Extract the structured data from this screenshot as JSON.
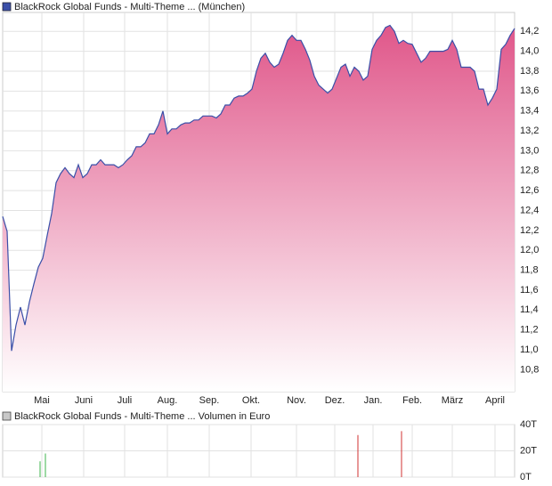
{
  "chart_data": [
    {
      "type": "area",
      "title": "BlackRock Global Funds - Multi-Theme ... (München)",
      "color": "#3a4fa8",
      "fill_color": "#e0578a",
      "xlim": [
        0,
        115
      ],
      "xticks": [
        {
          "value": 8.8,
          "label": "Mai"
        },
        {
          "value": 18.2,
          "label": "Juni"
        },
        {
          "value": 27.4,
          "label": "Juli"
        },
        {
          "value": 37,
          "label": "Aug."
        },
        {
          "value": 46.4,
          "label": "Sep."
        },
        {
          "value": 55.8,
          "label": "Okt."
        },
        {
          "value": 66,
          "label": "Nov."
        },
        {
          "value": 74.6,
          "label": "Dez."
        },
        {
          "value": 83.2,
          "label": "Jan."
        },
        {
          "value": 92,
          "label": "Feb."
        },
        {
          "value": 101,
          "label": "März"
        },
        {
          "value": 110.6,
          "label": "April"
        }
      ],
      "ylim": [
        10.58,
        14.39
      ],
      "yticks": [
        {
          "value": 10.8,
          "label": "10,8"
        },
        {
          "value": 11.0,
          "label": "11,0"
        },
        {
          "value": 11.2,
          "label": "11,2"
        },
        {
          "value": 11.4,
          "label": "11,4"
        },
        {
          "value": 11.6,
          "label": "11,6"
        },
        {
          "value": 11.8,
          "label": "11,8"
        },
        {
          "value": 12.0,
          "label": "12,0"
        },
        {
          "value": 12.2,
          "label": "12,2"
        },
        {
          "value": 12.4,
          "label": "12,4"
        },
        {
          "value": 12.6,
          "label": "12,6"
        },
        {
          "value": 12.8,
          "label": "12,8"
        },
        {
          "value": 13.0,
          "label": "13,0"
        },
        {
          "value": 13.2,
          "label": "13,2"
        },
        {
          "value": 13.4,
          "label": "13,4"
        },
        {
          "value": 13.6,
          "label": "13,6"
        },
        {
          "value": 13.8,
          "label": "13,8"
        },
        {
          "value": 14.0,
          "label": "14,0"
        },
        {
          "value": 14.2,
          "label": "14,2"
        }
      ],
      "grid": true,
      "values": [
        12.34,
        12.19,
        10.99,
        11.25,
        11.43,
        11.25,
        11.48,
        11.66,
        11.83,
        11.92,
        12.15,
        12.37,
        12.68,
        12.77,
        12.83,
        12.77,
        12.73,
        12.86,
        12.73,
        12.77,
        12.86,
        12.86,
        12.91,
        12.86,
        12.86,
        12.86,
        12.83,
        12.86,
        12.91,
        12.95,
        13.04,
        13.04,
        13.08,
        13.17,
        13.17,
        13.26,
        13.4,
        13.17,
        13.22,
        13.22,
        13.26,
        13.28,
        13.28,
        13.31,
        13.31,
        13.35,
        13.35,
        13.35,
        13.33,
        13.37,
        13.46,
        13.46,
        13.53,
        13.55,
        13.55,
        13.58,
        13.62,
        13.8,
        13.93,
        13.98,
        13.89,
        13.84,
        13.87,
        13.98,
        14.11,
        14.16,
        14.11,
        14.11,
        14.02,
        13.91,
        13.75,
        13.66,
        13.62,
        13.58,
        13.62,
        13.73,
        13.84,
        13.87,
        13.75,
        13.84,
        13.8,
        13.71,
        13.75,
        14.02,
        14.11,
        14.16,
        14.24,
        14.26,
        14.2,
        14.08,
        14.11,
        14.08,
        14.07,
        13.98,
        13.89,
        13.93,
        14.0,
        14.0,
        14.0,
        14.0,
        14.02,
        14.11,
        14.02,
        13.84,
        13.84,
        13.84,
        13.8,
        13.62,
        13.62,
        13.46,
        13.53,
        13.62,
        14.02,
        14.07,
        14.16,
        14.23
      ]
    },
    {
      "type": "bar",
      "title": "BlackRock Global Funds - Multi-Theme ... Volumen in Euro",
      "xlim": [
        0,
        115
      ],
      "ylim": [
        0,
        40000
      ],
      "yticks": [
        {
          "value": 0,
          "label": "0T"
        },
        {
          "value": 20000,
          "label": "20T"
        },
        {
          "value": 40000,
          "label": "40T"
        }
      ],
      "x": [
        8.4,
        9.6,
        79.8,
        89.6
      ],
      "values": [
        12000,
        18000,
        32000,
        35000
      ],
      "colors": [
        "#3cb44b",
        "#3cb44b",
        "#d03030",
        "#d03030"
      ]
    }
  ]
}
